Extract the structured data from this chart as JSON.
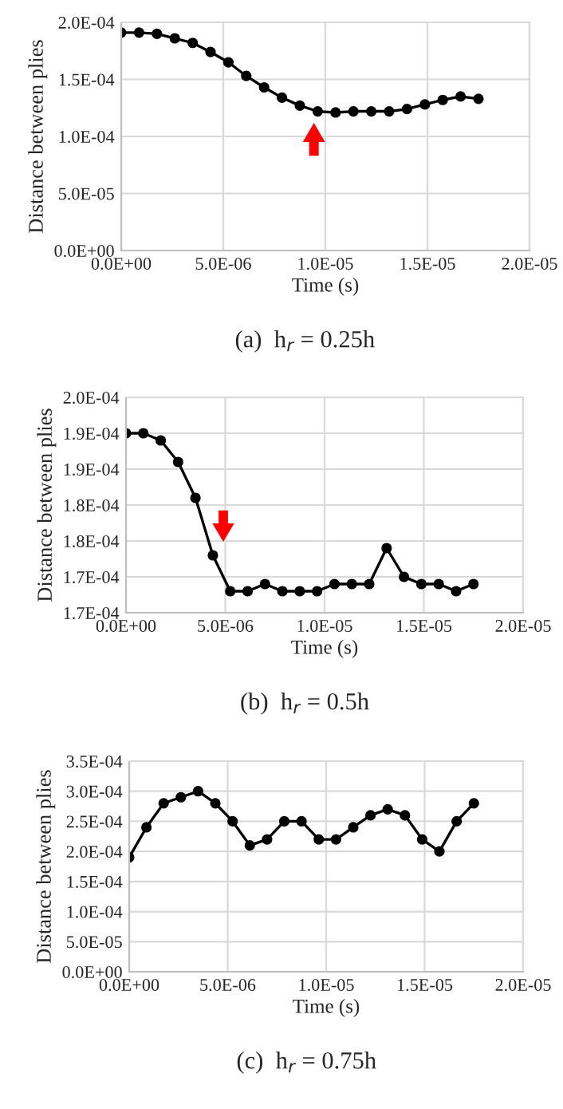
{
  "chart_data": [
    {
      "type": "line",
      "xlabel": "Time (s)",
      "ylabel": "Distance between plies",
      "annotations": [
        "(a)  h$_{r}$ = 0.25h"
      ],
      "grid": true,
      "marker": "circle",
      "line_style": "solid",
      "xlim": [
        0,
        2e-05
      ],
      "xticks": [
        {
          "value": 0,
          "label": "0.0E+00"
        },
        {
          "value": 5e-06,
          "label": "5.0E-06"
        },
        {
          "value": 1e-05,
          "label": "1.0E-05"
        },
        {
          "value": 1.5e-05,
          "label": "1.5E-05"
        },
        {
          "value": 2e-05,
          "label": "2.0E-05"
        }
      ],
      "ylim": [
        0,
        0.0002
      ],
      "yticks": [
        {
          "value": 0,
          "label": "0.0E+00"
        },
        {
          "value": 5e-05,
          "label": "5.0E-05"
        },
        {
          "value": 0.0001,
          "label": "1.0E-04"
        },
        {
          "value": 0.00015,
          "label": "1.5E-04"
        },
        {
          "value": 0.0002,
          "label": "2.0E-04"
        }
      ],
      "series": [
        {
          "color": "#000000",
          "x": [
            0,
            8.75e-07,
            1.75e-06,
            2.625e-06,
            3.5e-06,
            4.375e-06,
            5.25e-06,
            6.125e-06,
            7e-06,
            7.875e-06,
            8.75e-06,
            9.625e-06,
            1.05e-05,
            1.1375e-05,
            1.225e-05,
            1.3125e-05,
            1.4e-05,
            1.4875e-05,
            1.575e-05,
            1.6625e-05,
            1.75e-05
          ],
          "values": [
            0.000191,
            0.000191,
            0.00019,
            0.000186,
            0.000182,
            0.000174,
            0.000165,
            0.000153,
            0.000143,
            0.000134,
            0.000127,
            0.000122,
            0.000121,
            0.000122,
            0.000122,
            0.000122,
            0.000124,
            0.000128,
            0.000132,
            0.000135,
            0.000133
          ]
        }
      ]
    },
    {
      "type": "line",
      "xlabel": "Time (s)",
      "ylabel": "Distance between plies",
      "annotations": [
        "(b)  h$_{r}$ = 0.5h"
      ],
      "grid": true,
      "marker": "circle",
      "line_style": "solid",
      "xlim": [
        0,
        2e-05
      ],
      "xticks": [
        {
          "value": 0,
          "label": "0.0E+00"
        },
        {
          "value": 5e-06,
          "label": "5.0E-06"
        },
        {
          "value": 1e-05,
          "label": "1.0E-05"
        },
        {
          "value": 1.5e-05,
          "label": "1.5E-05"
        },
        {
          "value": 2e-05,
          "label": "2.0E-05"
        }
      ],
      "ylim": [
        0.000165,
        0.000195
      ],
      "yticks": [
        {
          "value": 0.000165,
          "label": "1.7E-04"
        },
        {
          "value": 0.00017,
          "label": "1.7E-04"
        },
        {
          "value": 0.000175,
          "label": "1.8E-04"
        },
        {
          "value": 0.00018,
          "label": "1.8E-04"
        },
        {
          "value": 0.000185,
          "label": "1.9E-04"
        },
        {
          "value": 0.00019,
          "label": "1.9E-04"
        },
        {
          "value": 0.000195,
          "label": "2.0E-04"
        }
      ],
      "series": [
        {
          "color": "#000000",
          "x": [
            0,
            8.75e-07,
            1.75e-06,
            2.625e-06,
            3.5e-06,
            4.375e-06,
            5.25e-06,
            6.125e-06,
            7e-06,
            7.875e-06,
            8.75e-06,
            9.625e-06,
            1.05e-05,
            1.1375e-05,
            1.225e-05,
            1.3125e-05,
            1.4e-05,
            1.4875e-05,
            1.575e-05,
            1.6625e-05,
            1.75e-05
          ],
          "values": [
            0.00019,
            0.00019,
            0.000189,
            0.000186,
            0.000181,
            0.000173,
            0.000168,
            0.000168,
            0.000169,
            0.000168,
            0.000168,
            0.000168,
            0.000169,
            0.000169,
            0.000169,
            0.000174,
            0.00017,
            0.000169,
            0.000169,
            0.000168,
            0.000169
          ]
        }
      ]
    },
    {
      "type": "line",
      "xlabel": "Time (s)",
      "ylabel": "Distance between plies",
      "annotations": [
        "(c)  h$_{r}$ = 0.75h"
      ],
      "grid": true,
      "marker": "circle",
      "line_style": "solid",
      "xlim": [
        0,
        2e-05
      ],
      "xticks": [
        {
          "value": 0,
          "label": "0.0E+00"
        },
        {
          "value": 5e-06,
          "label": "5.0E-06"
        },
        {
          "value": 1e-05,
          "label": "1.0E-05"
        },
        {
          "value": 1.5e-05,
          "label": "1.5E-05"
        },
        {
          "value": 2e-05,
          "label": "2.0E-05"
        }
      ],
      "ylim": [
        0,
        0.00035
      ],
      "yticks": [
        {
          "value": 0,
          "label": "0.0E+00"
        },
        {
          "value": 5e-05,
          "label": "5.0E-05"
        },
        {
          "value": 0.0001,
          "label": "1.0E-04"
        },
        {
          "value": 0.00015,
          "label": "1.5E-04"
        },
        {
          "value": 0.0002,
          "label": "2.0E-04"
        },
        {
          "value": 0.00025,
          "label": "2.5E-04"
        },
        {
          "value": 0.0003,
          "label": "3.0E-04"
        },
        {
          "value": 0.00035,
          "label": "3.5E-04"
        }
      ],
      "series": [
        {
          "color": "#000000",
          "x": [
            0,
            8.75e-07,
            1.75e-06,
            2.625e-06,
            3.5e-06,
            4.375e-06,
            5.25e-06,
            6.125e-06,
            7e-06,
            7.875e-06,
            8.75e-06,
            9.625e-06,
            1.05e-05,
            1.1375e-05,
            1.225e-05,
            1.3125e-05,
            1.4e-05,
            1.4875e-05,
            1.575e-05,
            1.6625e-05,
            1.75e-05
          ],
          "values": [
            0.00019,
            0.00024,
            0.00028,
            0.00029,
            0.0003,
            0.00028,
            0.00025,
            0.00021,
            0.00022,
            0.00025,
            0.00025,
            0.00022,
            0.00022,
            0.00024,
            0.00026,
            0.00027,
            0.00026,
            0.00022,
            0.0002,
            0.00025,
            0.00028
          ]
        }
      ]
    }
  ]
}
